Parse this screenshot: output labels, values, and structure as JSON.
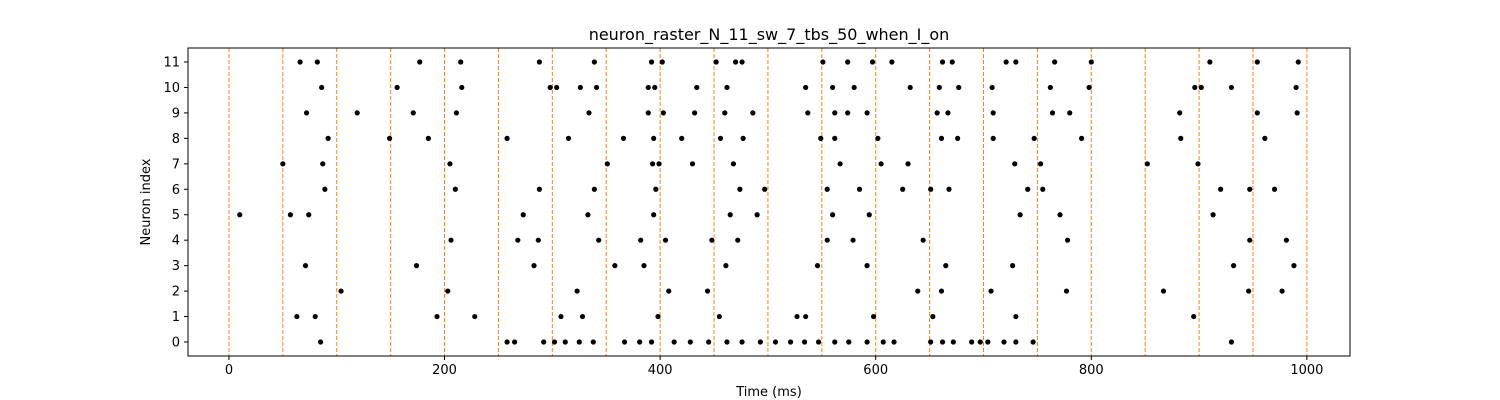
{
  "chart_data": {
    "type": "scatter",
    "title": "neuron_raster_N_11_sw_7_tbs_50_when_I_on",
    "xlabel": "Time (ms)",
    "ylabel": "Neuron index",
    "xlim": [
      -38,
      1040
    ],
    "ylim": [
      -0.55,
      11.55
    ],
    "xticks": [
      0,
      200,
      400,
      600,
      800,
      1000
    ],
    "yticks": [
      0,
      1,
      2,
      3,
      4,
      5,
      6,
      7,
      8,
      9,
      10,
      11
    ],
    "grid": false,
    "marker_color": "#000000",
    "vline_color": "#ff7f0e",
    "vline_style": "dashed",
    "vlines_x": [
      0,
      50,
      100,
      150,
      200,
      250,
      300,
      350,
      400,
      450,
      500,
      550,
      600,
      650,
      700,
      750,
      800,
      850,
      900,
      950,
      1000
    ],
    "spikes": [
      {
        "neuron": 0,
        "times": [
          85,
          258,
          265,
          292,
          302,
          312,
          325,
          338,
          367,
          381,
          392,
          413,
          428,
          445,
          462,
          476,
          493,
          507,
          521,
          534,
          547,
          562,
          575,
          592,
          607,
          617,
          651,
          662,
          672,
          689,
          697,
          704,
          719,
          730,
          746,
          930
        ]
      },
      {
        "neuron": 1,
        "times": [
          63,
          80,
          193,
          228,
          308,
          328,
          398,
          455,
          527,
          535,
          598,
          653,
          730,
          895
        ]
      },
      {
        "neuron": 2,
        "times": [
          104,
          203,
          323,
          408,
          444,
          639,
          661,
          707,
          777,
          867,
          946,
          977
        ]
      },
      {
        "neuron": 3,
        "times": [
          71,
          174,
          283,
          358,
          385,
          461,
          546,
          592,
          665,
          727,
          932,
          988
        ]
      },
      {
        "neuron": 4,
        "times": [
          206,
          268,
          287,
          343,
          382,
          405,
          448,
          472,
          555,
          579,
          644,
          778,
          947,
          981
        ]
      },
      {
        "neuron": 5,
        "times": [
          10,
          57,
          74,
          273,
          333,
          394,
          465,
          490,
          560,
          594,
          734,
          771,
          913
        ]
      },
      {
        "neuron": 6,
        "times": [
          89,
          210,
          288,
          339,
          396,
          474,
          497,
          555,
          585,
          625,
          651,
          668,
          741,
          755,
          920,
          947,
          970
        ]
      },
      {
        "neuron": 7,
        "times": [
          50,
          87,
          205,
          351,
          393,
          399,
          430,
          468,
          567,
          605,
          630,
          729,
          753,
          852,
          899
        ]
      },
      {
        "neuron": 8,
        "times": [
          92,
          149,
          185,
          258,
          315,
          366,
          394,
          420,
          456,
          477,
          549,
          562,
          602,
          661,
          676,
          709,
          747,
          791,
          883,
          961
        ]
      },
      {
        "neuron": 9,
        "times": [
          72,
          119,
          171,
          211,
          334,
          389,
          403,
          432,
          460,
          486,
          537,
          562,
          574,
          592,
          657,
          667,
          709,
          764,
          780,
          882,
          954,
          991
        ]
      },
      {
        "neuron": 10,
        "times": [
          86,
          156,
          216,
          298,
          304,
          326,
          341,
          389,
          395,
          434,
          462,
          535,
          560,
          580,
          632,
          659,
          677,
          708,
          762,
          798,
          896,
          902,
          930,
          990
        ]
      },
      {
        "neuron": 11,
        "times": [
          66,
          82,
          177,
          215,
          288,
          339,
          392,
          402,
          452,
          470,
          476,
          551,
          574,
          597,
          615,
          662,
          671,
          721,
          730,
          766,
          800,
          910,
          954,
          992
        ]
      }
    ]
  }
}
